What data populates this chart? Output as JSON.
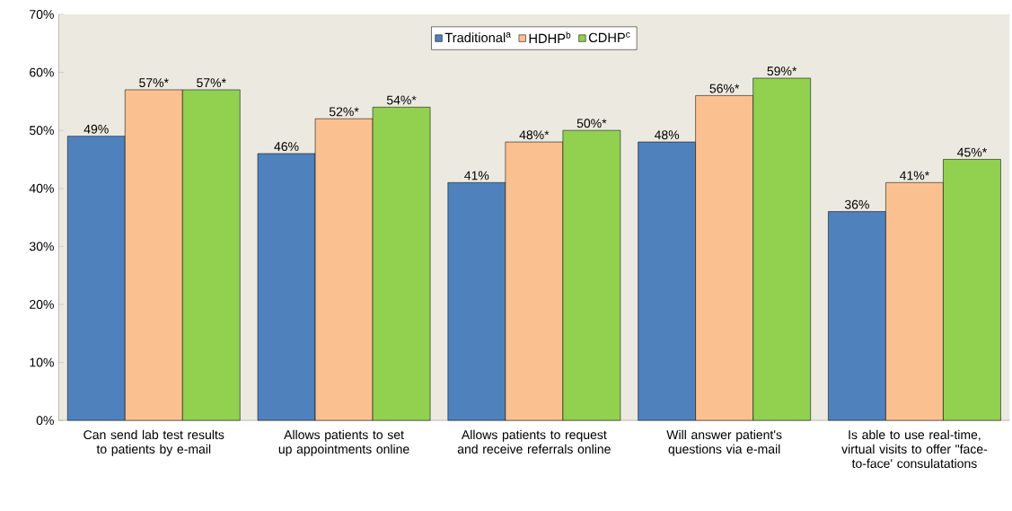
{
  "chart_data": {
    "type": "bar",
    "categories": [
      "Can send lab test results to patients by e-mail",
      "Allows patients to set up appointments online",
      "Allows patients to request and receive referrals online",
      "Will answer patient's questions via e-mail",
      "Is able to use real-time, virtual visits to offer \"face-to-face' consulatations"
    ],
    "series": [
      {
        "name": "Traditional$^{a}$",
        "color": "#4f81bd",
        "values": [
          49,
          46,
          41,
          48,
          36
        ],
        "value_labels": [
          "49%",
          "46%",
          "41%",
          "48%",
          "36%"
        ]
      },
      {
        "name": "HDHP$^{b}$",
        "color": "#fac090",
        "values": [
          57,
          52,
          48,
          56,
          41
        ],
        "value_labels": [
          "57%*",
          "52%*",
          "48%*",
          "56%*",
          "41%*"
        ]
      },
      {
        "name": "CDHP$^{c}$",
        "color": "#92d050",
        "values": [
          57,
          54,
          50,
          59,
          45
        ],
        "value_labels": [
          "57%*",
          "54%*",
          "50%*",
          "59%*",
          "45%*"
        ]
      }
    ],
    "ylim": [
      0,
      70
    ],
    "yticks": [
      {
        "value": 0,
        "label": "0%"
      },
      {
        "value": 10,
        "label": "10%"
      },
      {
        "value": 20,
        "label": "20%"
      },
      {
        "value": 30,
        "label": "30%"
      },
      {
        "value": 40,
        "label": "40%"
      },
      {
        "value": 50,
        "label": "50%"
      },
      {
        "value": 60,
        "label": "60%"
      },
      {
        "value": 70,
        "label": "70%"
      }
    ],
    "legend": "top",
    "grid": false
  }
}
